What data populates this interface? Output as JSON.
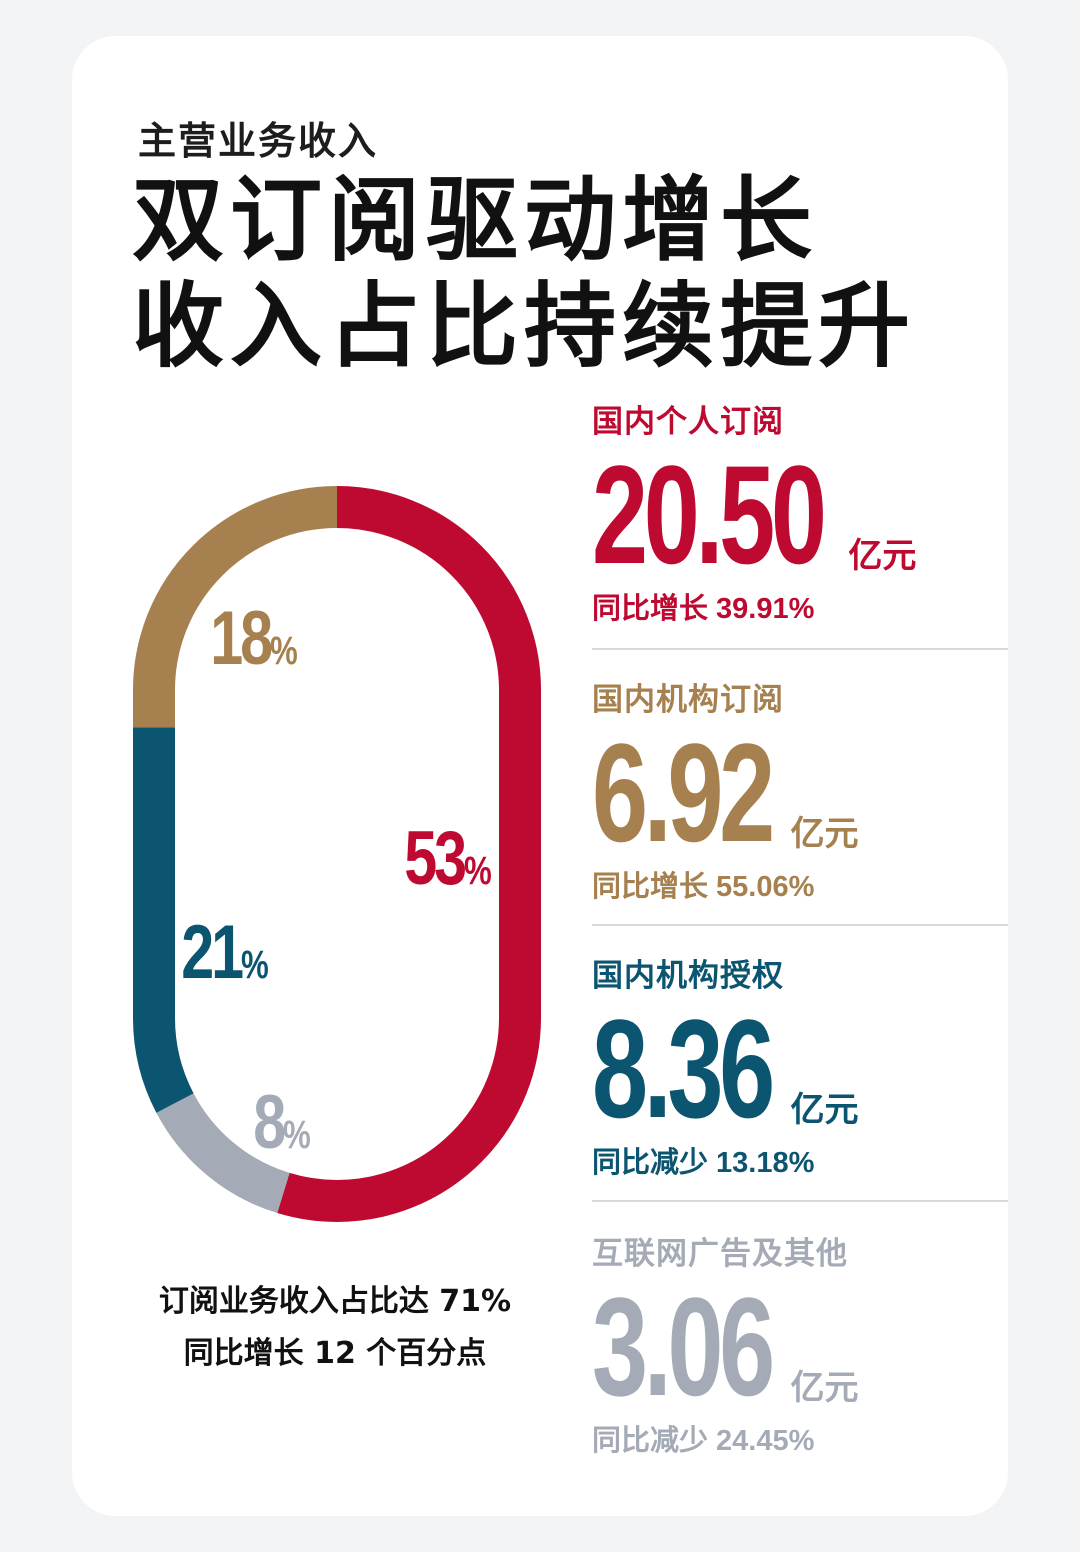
{
  "header": {
    "subtitle": "主营业务收入",
    "headline_line1": "双订阅驱动增长",
    "headline_line2": "收入占比持续提升"
  },
  "colors": {
    "red": "#be0a30",
    "gold": "#a6804f",
    "teal": "#0c5570",
    "gray": "#a4abb6"
  },
  "chart_data": {
    "type": "pie",
    "shape": "stadium-ring",
    "slices": [
      {
        "label": "国内个人订阅",
        "value": 53,
        "display": "53",
        "color": "#be0a30"
      },
      {
        "label": "互联网广告及其他",
        "value": 8,
        "display": "8",
        "color": "#a4abb6"
      },
      {
        "label": "国内机构授权",
        "value": 21,
        "display": "21",
        "color": "#0c5570"
      },
      {
        "label": "国内机构订阅",
        "value": 18,
        "display": "18",
        "color": "#a6804f"
      }
    ],
    "unit_symbol": "%"
  },
  "summary": {
    "line1": "订阅业务收入占比达 71%",
    "line2": "同比增长 12 个百分点"
  },
  "stats": [
    {
      "label": "国内个人订阅",
      "value": "20.50",
      "unit": "亿元",
      "yoy_label": "同比增长",
      "yoy_value": "39.91%",
      "color": "#be0a30"
    },
    {
      "label": "国内机构订阅",
      "value": "6.92",
      "unit": "亿元",
      "yoy_label": "同比增长",
      "yoy_value": "55.06%",
      "color": "#a6804f"
    },
    {
      "label": "国内机构授权",
      "value": "8.36",
      "unit": "亿元",
      "yoy_label": "同比减少",
      "yoy_value": "13.18%",
      "color": "#0c5570"
    },
    {
      "label": "互联网广告及其他",
      "value": "3.06",
      "unit": "亿元",
      "yoy_label": "同比减少",
      "yoy_value": "24.45%",
      "color": "#a4abb6"
    }
  ]
}
